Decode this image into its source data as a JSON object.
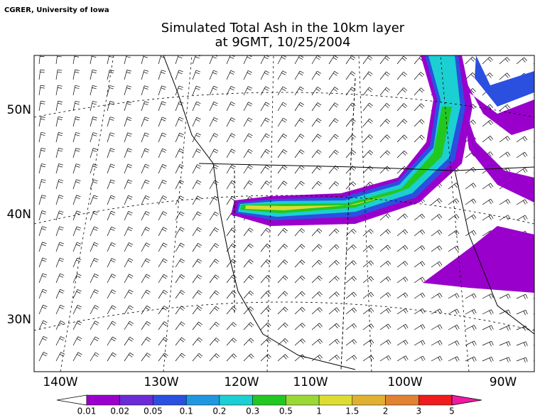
{
  "credit": "CGRER, University of Iowa",
  "title": [
    "Simulated Total Ash in the 10km layer",
    "at 9GMT, 10/25/2004"
  ],
  "map": {
    "lat_labels": [
      "50N",
      "40N",
      "30N"
    ],
    "lon_labels": [
      "140W",
      "130W",
      "120W",
      "110W",
      "100W",
      "90W"
    ]
  },
  "colorbar": {
    "levels": [
      0.01,
      0.02,
      0.05,
      0.1,
      0.2,
      0.3,
      0.5,
      1,
      1.5,
      2,
      3,
      5
    ],
    "colors": [
      "#9a00cc",
      "#6b2bd6",
      "#2b50e0",
      "#1f98e0",
      "#1ccfd2",
      "#22c722",
      "#9ad834",
      "#dcdc34",
      "#e0b030",
      "#e08232",
      "#ee1c1c"
    ],
    "under_color": "#ffffff",
    "over_color": "#ee1ca0"
  }
}
